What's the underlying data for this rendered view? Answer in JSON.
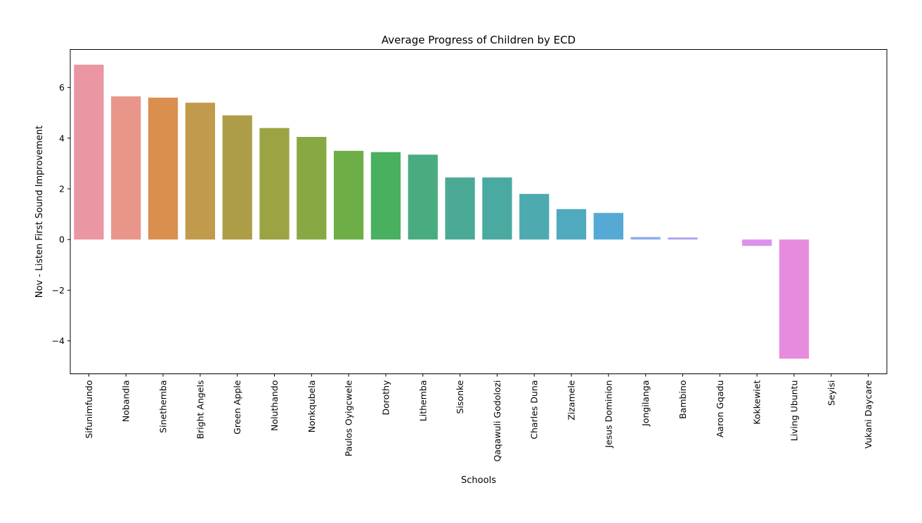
{
  "chart_data": {
    "type": "bar",
    "title": "Average Progress of Children by ECD",
    "xlabel": "Schools",
    "ylabel": "Nov - Listen First Sound Improvement",
    "ylim": [
      -5.3,
      7.5
    ],
    "yticks": [
      -4,
      -2,
      0,
      2,
      4,
      6
    ],
    "ytick_labels": [
      "−4",
      "−2",
      "0",
      "2",
      "4",
      "6"
    ],
    "grid": false,
    "categories": [
      "Sifunimfundo",
      "Nobandla",
      "Sinethemba",
      "Bright Angels",
      "Green Apple",
      "Noluthando",
      "Nonkqubela",
      "Paulos Oyigcwele",
      "Dorothy",
      "Lithemba",
      "Sisonke",
      "Qaqawuli Godolozi",
      "Charles Duna",
      "Zizamele",
      "Jesus Dominion",
      "Jongilanga",
      "Bambino",
      "Aaron Gqadu",
      "Kokkewiet",
      "Living Ubuntu",
      "Seyisi",
      "Vukani Daycare"
    ],
    "values": [
      6.9,
      5.65,
      5.6,
      5.4,
      4.9,
      4.4,
      4.05,
      3.5,
      3.45,
      3.35,
      2.45,
      2.45,
      1.8,
      1.2,
      1.05,
      0.1,
      0.08,
      0.0,
      -0.25,
      -4.7,
      0.0,
      0.0
    ],
    "colors": [
      "#ea96a3",
      "#e8968a",
      "#db8f4f",
      "#c29a4c",
      "#ad9d46",
      "#9ca343",
      "#88a843",
      "#6dae47",
      "#49b05f",
      "#49ac81",
      "#4aaa95",
      "#4aa9a1",
      "#4daaaf",
      "#4faabd",
      "#55a9d4",
      "#8fadec",
      "#aaa4ec",
      "#c99bec",
      "#dc92ec",
      "#e68bdd",
      "#e991cc",
      "#ea94ba"
    ]
  }
}
